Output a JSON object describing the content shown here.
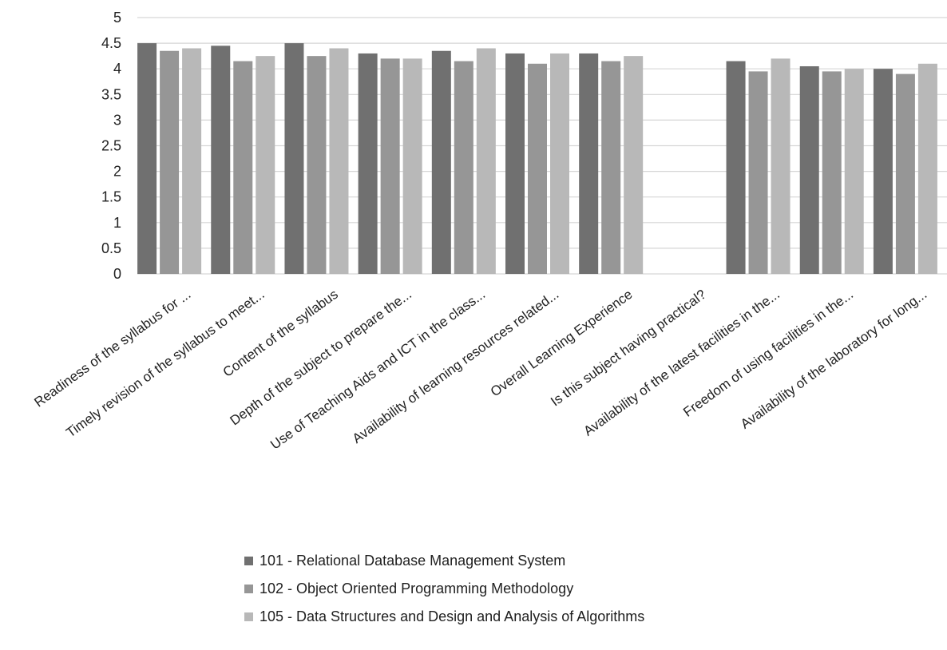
{
  "chart_data": {
    "type": "bar",
    "title": "",
    "xlabel": "",
    "ylabel": "",
    "ylim": [
      0,
      5
    ],
    "y_ticks": [
      "0",
      "0.5",
      "1",
      "1.5",
      "2",
      "2.5",
      "3",
      "3.5",
      "4",
      "4.5",
      "5"
    ],
    "grid": true,
    "legend_position": "bottom",
    "categories": [
      "Readiness of the syllabus for ...",
      "Timely revision of the syllabus to meet...",
      "Content of the syllabus",
      "Depth of the subject to prepare the...",
      "Use of Teaching Aids and ICT in the class...",
      "Availability of learning resources related...",
      "Overall Learning Experience",
      "Is this subject having practical?",
      "Availability of the latest facilities in the...",
      "Freedom of using facilities in the...",
      "Availability of the laboratory for long..."
    ],
    "series": [
      {
        "name": "101 - Relational Database Management System",
        "color": "#707070",
        "values": [
          4.5,
          4.45,
          4.5,
          4.3,
          4.35,
          4.3,
          4.3,
          null,
          4.15,
          4.05,
          4.0
        ]
      },
      {
        "name": "102 - Object Oriented Programming Methodology",
        "color": "#969696",
        "values": [
          4.35,
          4.15,
          4.25,
          4.2,
          4.15,
          4.1,
          4.15,
          null,
          3.95,
          3.95,
          3.9
        ]
      },
      {
        "name": "105 - Data Structures and Design and Analysis of Algorithms",
        "color": "#b8b8b8",
        "values": [
          4.4,
          4.25,
          4.4,
          4.2,
          4.4,
          4.3,
          4.25,
          null,
          4.2,
          4.0,
          4.1
        ]
      }
    ]
  }
}
